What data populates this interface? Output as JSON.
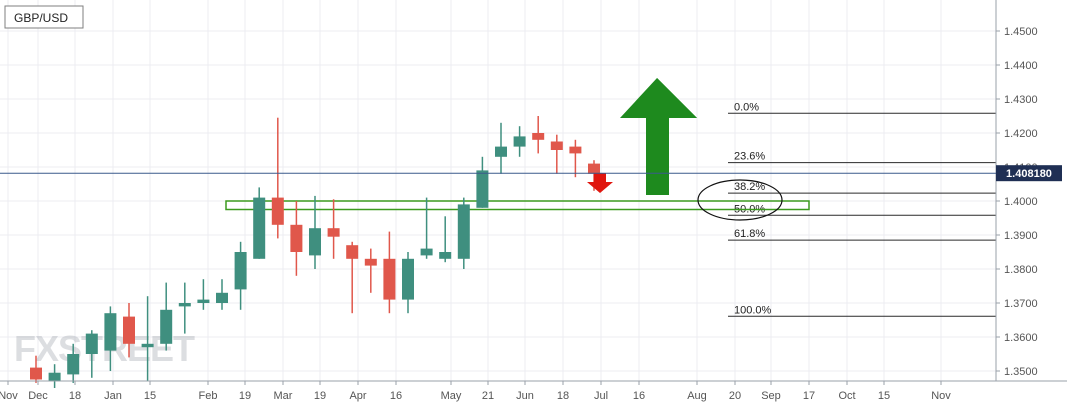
{
  "symbol_label": "GBP/USD",
  "watermark": "FXSTREET",
  "colors": {
    "bull": "#3f8f7f",
    "bear": "#e0574b",
    "grid": "#ececf2",
    "price_line": "#3a5a8c",
    "price_tag_bg": "#1f2f54",
    "zone": "#3c9a1e",
    "up_arrow": "#1e8a1e",
    "down_arrow": "#e0160e"
  },
  "chart_data": {
    "type": "candlestick",
    "title": "GBP/USD",
    "timeframe": "weekly",
    "ylim": [
      1.3465,
      1.4575
    ],
    "y_ticks": [
      "1.3500",
      "1.3600",
      "1.3700",
      "1.3800",
      "1.3900",
      "1.4000",
      "1.4100",
      "1.4200",
      "1.4300",
      "1.4400",
      "1.4500"
    ],
    "x_tick_labels": [
      "Nov",
      "Dec",
      "18",
      "Jan",
      "15",
      "Feb",
      "19",
      "Mar",
      "19",
      "Apr",
      "16",
      "May",
      "21",
      "Jun",
      "18",
      "Jul",
      "16",
      "Aug",
      "20",
      "Sep",
      "17",
      "Oct",
      "15",
      "Nov"
    ],
    "current_price": "1.408180",
    "candles": [
      {
        "open": 1.351,
        "high": 1.3545,
        "low": 1.3465,
        "close": 1.3475
      },
      {
        "open": 1.347,
        "high": 1.352,
        "low": 1.345,
        "close": 1.3495
      },
      {
        "open": 1.349,
        "high": 1.358,
        "low": 1.3465,
        "close": 1.355
      },
      {
        "open": 1.355,
        "high": 1.362,
        "low": 1.348,
        "close": 1.361
      },
      {
        "open": 1.356,
        "high": 1.369,
        "low": 1.35,
        "close": 1.367
      },
      {
        "open": 1.366,
        "high": 1.37,
        "low": 1.354,
        "close": 1.358
      },
      {
        "open": 1.357,
        "high": 1.372,
        "low": 1.347,
        "close": 1.358
      },
      {
        "open": 1.358,
        "high": 1.376,
        "low": 1.356,
        "close": 1.368
      },
      {
        "open": 1.369,
        "high": 1.376,
        "low": 1.361,
        "close": 1.37
      },
      {
        "open": 1.37,
        "high": 1.377,
        "low": 1.368,
        "close": 1.371
      },
      {
        "open": 1.37,
        "high": 1.377,
        "low": 1.368,
        "close": 1.373
      },
      {
        "open": 1.374,
        "high": 1.388,
        "low": 1.368,
        "close": 1.385
      },
      {
        "open": 1.383,
        "high": 1.404,
        "low": 1.383,
        "close": 1.401
      },
      {
        "open": 1.401,
        "high": 1.4245,
        "low": 1.389,
        "close": 1.393
      },
      {
        "open": 1.393,
        "high": 1.4,
        "low": 1.378,
        "close": 1.385
      },
      {
        "open": 1.384,
        "high": 1.4015,
        "low": 1.38,
        "close": 1.392
      },
      {
        "open": 1.392,
        "high": 1.4005,
        "low": 1.383,
        "close": 1.3895
      },
      {
        "open": 1.387,
        "high": 1.388,
        "low": 1.367,
        "close": 1.383
      },
      {
        "open": 1.383,
        "high": 1.386,
        "low": 1.373,
        "close": 1.381
      },
      {
        "open": 1.383,
        "high": 1.391,
        "low": 1.367,
        "close": 1.371
      },
      {
        "open": 1.371,
        "high": 1.385,
        "low": 1.367,
        "close": 1.383
      },
      {
        "open": 1.384,
        "high": 1.401,
        "low": 1.383,
        "close": 1.386
      },
      {
        "open": 1.383,
        "high": 1.3955,
        "low": 1.382,
        "close": 1.385
      },
      {
        "open": 1.383,
        "high": 1.401,
        "low": 1.38,
        "close": 1.399
      },
      {
        "open": 1.398,
        "high": 1.413,
        "low": 1.398,
        "close": 1.409
      },
      {
        "open": 1.413,
        "high": 1.423,
        "low": 1.408,
        "close": 1.416
      },
      {
        "open": 1.416,
        "high": 1.422,
        "low": 1.413,
        "close": 1.419
      },
      {
        "open": 1.42,
        "high": 1.425,
        "low": 1.414,
        "close": 1.418
      },
      {
        "open": 1.4175,
        "high": 1.4195,
        "low": 1.408,
        "close": 1.415
      },
      {
        "open": 1.416,
        "high": 1.418,
        "low": 1.407,
        "close": 1.414
      },
      {
        "open": 1.411,
        "high": 1.412,
        "low": 1.403,
        "close": 1.408
      }
    ],
    "fibonacci": [
      {
        "label": "0.0%",
        "level": 1.4258
      },
      {
        "label": "23.6%",
        "level": 1.4113
      },
      {
        "label": "38.2%",
        "level": 1.4023
      },
      {
        "label": "50.0%",
        "level": 1.3958
      },
      {
        "label": "61.8%",
        "level": 1.3885
      },
      {
        "label": "100.0%",
        "level": 1.3661
      }
    ],
    "support_zone": {
      "from": 1.3975,
      "to": 1.4
    }
  }
}
